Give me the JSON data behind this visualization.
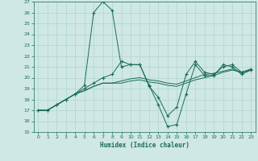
{
  "xlabel": "Humidex (Indice chaleur)",
  "xlim": [
    -0.5,
    23.5
  ],
  "ylim": [
    15,
    27
  ],
  "yticks": [
    15,
    16,
    17,
    18,
    19,
    20,
    21,
    22,
    23,
    24,
    25,
    26,
    27
  ],
  "xticks": [
    0,
    1,
    2,
    3,
    4,
    5,
    6,
    7,
    8,
    9,
    10,
    11,
    12,
    13,
    14,
    15,
    16,
    17,
    18,
    19,
    20,
    21,
    22,
    23
  ],
  "bg_color": "#cfe8e4",
  "line_color": "#1a6b5a",
  "grid_color": "#b0d4cc",
  "lines": [
    [
      17.0,
      17.0,
      17.5,
      18.0,
      18.5,
      19.3,
      26.0,
      27.0,
      26.2,
      21.0,
      21.2,
      21.2,
      19.3,
      17.5,
      15.5,
      15.7,
      18.5,
      21.2,
      20.2,
      20.2,
      21.2,
      21.0,
      20.3,
      20.7
    ],
    [
      17.0,
      17.0,
      17.5,
      18.0,
      18.5,
      19.0,
      19.5,
      20.0,
      20.3,
      21.5,
      21.2,
      21.2,
      19.2,
      18.2,
      16.5,
      17.3,
      20.3,
      21.5,
      20.5,
      20.3,
      21.0,
      21.2,
      20.5,
      20.8
    ],
    [
      17.0,
      17.0,
      17.5,
      18.0,
      18.5,
      18.8,
      19.2,
      19.5,
      19.5,
      19.5,
      19.7,
      19.8,
      19.6,
      19.5,
      19.3,
      19.2,
      19.5,
      19.8,
      20.0,
      20.2,
      20.5,
      20.7,
      20.5,
      20.7
    ],
    [
      17.0,
      17.0,
      17.5,
      18.0,
      18.5,
      18.8,
      19.2,
      19.5,
      19.5,
      19.7,
      19.9,
      20.0,
      19.8,
      19.7,
      19.5,
      19.4,
      19.7,
      20.0,
      20.3,
      20.4,
      20.6,
      20.8,
      20.5,
      20.7
    ]
  ],
  "marker_lines": [
    0,
    1
  ],
  "marker": "+",
  "markersize": 3.0
}
